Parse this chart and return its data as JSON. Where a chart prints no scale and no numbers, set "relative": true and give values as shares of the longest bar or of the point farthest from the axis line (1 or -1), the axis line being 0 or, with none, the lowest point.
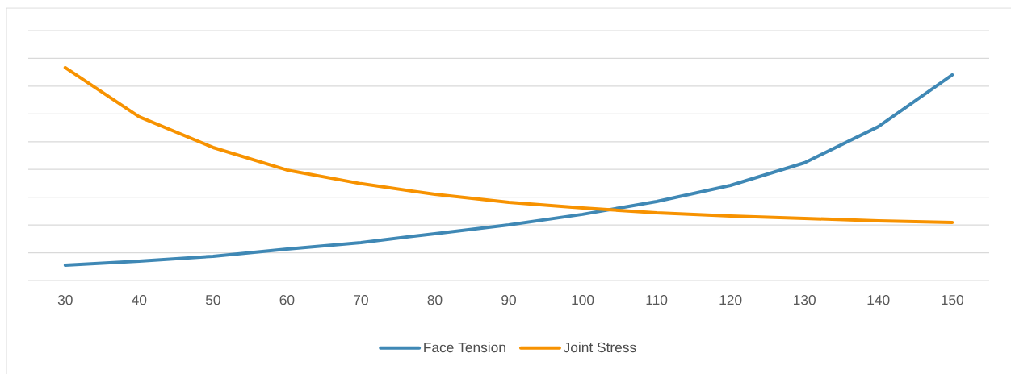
{
  "chart_data": {
    "type": "line",
    "relative": true,
    "grid": "y",
    "legend": "bottom",
    "line_style": "solid",
    "marker": "none",
    "categories": [
      "30",
      "40",
      "50",
      "60",
      "70",
      "80",
      "90",
      "100",
      "110",
      "120",
      "130",
      "140",
      "150"
    ],
    "series": [
      {
        "name": "Face Tension",
        "color": "#3f88b5",
        "values": [
          0.072,
          0.091,
          0.114,
          0.148,
          0.178,
          0.22,
          0.261,
          0.311,
          0.371,
          0.447,
          0.553,
          0.723,
          0.966
        ]
      },
      {
        "name": "Joint Stress",
        "color": "#f79200",
        "values": [
          1,
          0.769,
          0.625,
          0.519,
          0.455,
          0.405,
          0.367,
          0.341,
          0.318,
          0.303,
          0.292,
          0.28,
          0.273
        ]
      }
    ]
  }
}
